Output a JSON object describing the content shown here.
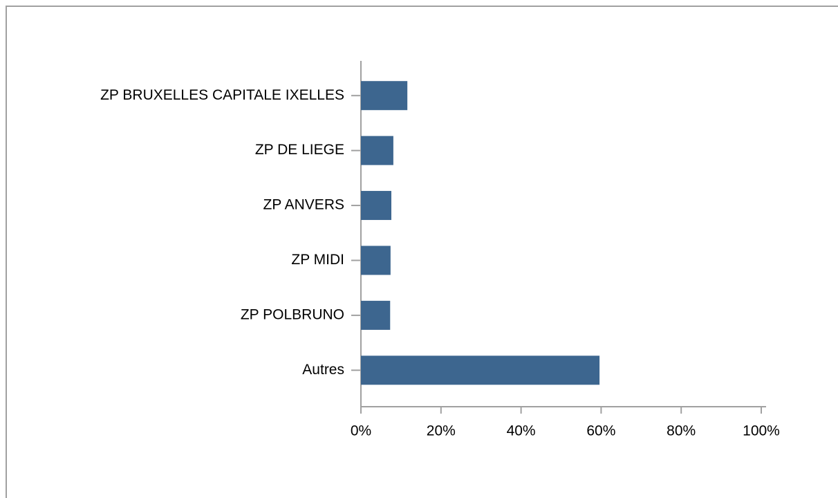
{
  "chart_data": {
    "type": "bar",
    "orientation": "horizontal",
    "categories": [
      "ZP BRUXELLES CAPITALE IXELLES",
      "ZP DE LIEGE",
      "ZP ANVERS",
      "ZP MIDI",
      "ZP POLBRUNO",
      "Autres"
    ],
    "values": [
      11.6,
      8.1,
      7.6,
      7.4,
      7.3,
      59.6
    ],
    "color": "#3d668f",
    "xlim": [
      0,
      100
    ],
    "xticks": [
      {
        "value": 0,
        "label": "0%"
      },
      {
        "value": 20,
        "label": "20%"
      },
      {
        "value": 40,
        "label": "40%"
      },
      {
        "value": 60,
        "label": "60%"
      },
      {
        "value": 80,
        "label": "80%"
      },
      {
        "value": 100,
        "label": "100%"
      }
    ]
  }
}
